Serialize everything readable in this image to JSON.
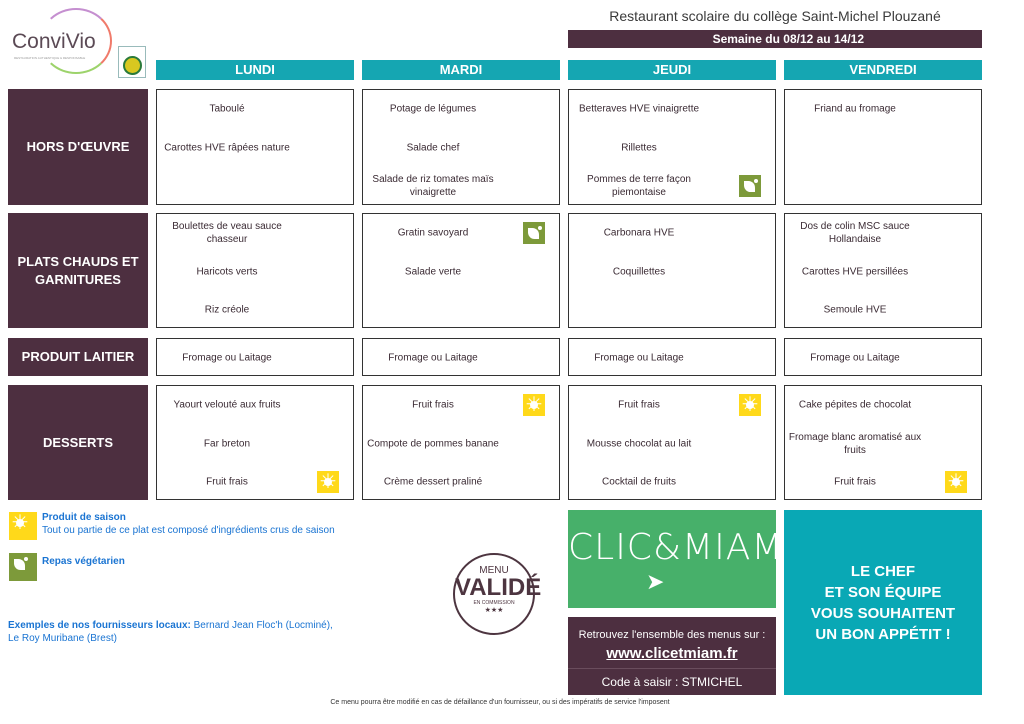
{
  "logo": {
    "brand": "ConviVio",
    "tagline": "RESTAURATION AUTHENTIQUE & RESPONSABLE"
  },
  "header": {
    "title": "Restaurant scolaire du collège Saint-Michel Plouzané",
    "week": "Semaine du 08/12 au 14/12"
  },
  "days": [
    "LUNDI",
    "MARDI",
    "JEUDI",
    "VENDREDI"
  ],
  "rows": [
    {
      "label": "HORS D'ŒUVRE",
      "days": [
        [
          {
            "text": "Taboulé"
          },
          {
            "text": "Carottes HVE râpées nature"
          },
          {
            "text": ""
          }
        ],
        [
          {
            "text": "Potage de légumes"
          },
          {
            "text": "Salade chef"
          },
          {
            "text": "Salade de riz tomates maïs vinaigrette"
          }
        ],
        [
          {
            "text": "Betteraves HVE vinaigrette"
          },
          {
            "text": "Rillettes"
          },
          {
            "text": "Pommes de terre façon piemontaise",
            "icon": "leaf"
          }
        ],
        [
          {
            "text": "Friand au fromage"
          },
          {
            "text": ""
          },
          {
            "text": ""
          }
        ]
      ]
    },
    {
      "label": "PLATS CHAUDS ET GARNITURES",
      "days": [
        [
          {
            "text": "Boulettes de veau sauce chasseur"
          },
          {
            "text": "Haricots verts"
          },
          {
            "text": "Riz créole"
          }
        ],
        [
          {
            "text": "Gratin savoyard",
            "icon": "leaf"
          },
          {
            "text": "Salade verte"
          },
          {
            "text": ""
          }
        ],
        [
          {
            "text": "Carbonara HVE"
          },
          {
            "text": "Coquillettes"
          },
          {
            "text": ""
          }
        ],
        [
          {
            "text": "Dos de colin MSC sauce Hollandaise"
          },
          {
            "text": "Carottes HVE persillées"
          },
          {
            "text": "Semoule HVE"
          }
        ]
      ]
    },
    {
      "label": "PRODUIT LAITIER",
      "days": [
        [
          {
            "text": "Fromage ou Laitage"
          }
        ],
        [
          {
            "text": "Fromage ou Laitage"
          }
        ],
        [
          {
            "text": "Fromage ou Laitage"
          }
        ],
        [
          {
            "text": "Fromage ou Laitage"
          }
        ]
      ]
    },
    {
      "label": "DESSERTS",
      "days": [
        [
          {
            "text": "Yaourt velouté aux fruits"
          },
          {
            "text": "Far breton"
          },
          {
            "text": "Fruit frais",
            "icon": "sun"
          }
        ],
        [
          {
            "text": "Fruit frais",
            "icon": "sun"
          },
          {
            "text": "Compote de pommes banane"
          },
          {
            "text": "Crème dessert praliné"
          }
        ],
        [
          {
            "text": "Fruit frais",
            "icon": "sun"
          },
          {
            "text": "Mousse chocolat au lait"
          },
          {
            "text": "Cocktail de fruits"
          }
        ],
        [
          {
            "text": "Cake pépites de chocolat"
          },
          {
            "text": "Fromage blanc aromatisé aux fruits"
          },
          {
            "text": "Fruit frais",
            "icon": "sun"
          }
        ]
      ]
    }
  ],
  "legend": {
    "season_title": "Produit de saison",
    "season_desc": "Tout ou partie de ce plat est composé d'ingrédients crus de saison",
    "veg_title": "Repas végétarien",
    "suppliers_label": "Exemples de nos fournisseurs locaux:",
    "suppliers": " Bernard Jean Floc'h (Locminé), Le Roy Muribane (Brest)"
  },
  "stamp": {
    "top": "MENU",
    "main": "VALIDÉ",
    "sub": "EN COMMISSION",
    "stars": "★★★"
  },
  "promo": {
    "brand": "CLIC&MIAM!",
    "find": "Retrouvez l'ensemble des menus sur :",
    "url": "www.clicetmiam.fr",
    "code": "Code à saisir : STMICHEL"
  },
  "chef": [
    "LE CHEF",
    "ET SON ÉQUIPE",
    "VOUS SOUHAITENT",
    "UN BON APPÉTIT !"
  ],
  "footer": "Ce menu pourra être modifié en cas de défaillance d'un fournisseur, ou si des impératifs de service l'imposent",
  "colors": {
    "teal": "#15a6b2",
    "plum": "#4d2f40",
    "green": "#47b06a",
    "sun": "#ffd91a",
    "leaf": "#7d9a3a",
    "legend_blue": "#1a74d2"
  }
}
